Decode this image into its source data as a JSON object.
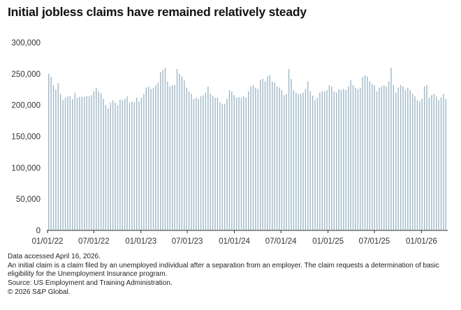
{
  "title": "Initial jobless claims have remained relatively steady",
  "notes": {
    "accessed": "Data accessed April 16, 2026.",
    "definition": "An initial claim is a claim filed by an unemployed individual after a separation from an employer. The claim requests a determination of basic eligibility for the Unemployment Insurance program.",
    "source": "Source: US Employment and Training Administration.",
    "copyright": "© 2026 S&P Global."
  },
  "colors": {
    "bar": "#9fb8c8",
    "axis": "#333333",
    "tick_text": "#333333"
  },
  "chart_data": {
    "type": "bar",
    "title": "Initial jobless claims have remained relatively steady",
    "xlabel": "",
    "ylabel": "",
    "ylim": [
      0,
      300000
    ],
    "yticks": [
      0,
      50000,
      100000,
      150000,
      200000,
      250000,
      300000
    ],
    "ytick_labels": [
      "0",
      "50,000",
      "100,000",
      "150,000",
      "200,000",
      "250,000",
      "300,000"
    ],
    "xtick_labels": [
      "01/01/22",
      "07/01/22",
      "01/01/23",
      "07/01/23",
      "01/01/24",
      "07/01/24",
      "01/01/25",
      "07/01/25",
      "01/01/26"
    ],
    "xtick_positions": [
      "2022-01-01",
      "2022-07-01",
      "2023-01-01",
      "2023-07-01",
      "2024-01-01",
      "2024-07-01",
      "2025-01-01",
      "2025-07-01",
      "2026-01-01"
    ],
    "x_start": "2022-01-01",
    "x_end": "2026-04-11",
    "grid": false,
    "legend": "none",
    "series": [
      {
        "values": [
          250000,
          245000,
          232000,
          225000,
          235000,
          218000,
          208000,
          212000,
          214000,
          215000,
          210000,
          220000,
          212000,
          213000,
          214000,
          213000,
          215000,
          214000,
          216000,
          222000,
          228000,
          222000,
          219000,
          210000,
          200000,
          195000,
          204000,
          208000,
          204000,
          200000,
          209000,
          208000,
          210000,
          214000,
          204000,
          206000,
          205000,
          212000,
          206000,
          212000,
          218000,
          228000,
          230000,
          226000,
          227000,
          232000,
          236000,
          253000,
          256000,
          260000,
          238000,
          230000,
          232000,
          232000,
          258000,
          250000,
          246000,
          240000,
          228000,
          222000,
          218000,
          210000,
          212000,
          210000,
          214000,
          216000,
          220000,
          230000,
          218000,
          215000,
          212000,
          212000,
          205000,
          202000,
          202000,
          210000,
          224000,
          222000,
          216000,
          212000,
          213000,
          212000,
          214000,
          212000,
          222000,
          230000,
          232000,
          228000,
          226000,
          240000,
          242000,
          238000,
          246000,
          248000,
          238000,
          236000,
          230000,
          228000,
          224000,
          216000,
          218000,
          258000,
          242000,
          224000,
          220000,
          218000,
          218000,
          220000,
          226000,
          238000,
          222000,
          215000,
          208000,
          212000,
          220000,
          222000,
          222000,
          224000,
          232000,
          230000,
          222000,
          220000,
          225000,
          224000,
          226000,
          224000,
          230000,
          240000,
          232000,
          228000,
          226000,
          228000,
          245000,
          248000,
          246000,
          238000,
          234000,
          232000,
          222000,
          228000,
          230000,
          232000,
          230000,
          238000,
          260000,
          232000,
          220000,
          228000,
          232000,
          230000,
          224000,
          228000,
          224000,
          218000,
          214000,
          208000,
          206000,
          210000,
          230000,
          232000,
          212000,
          216000,
          218000,
          214000,
          208000,
          212000,
          218000,
          210000
        ]
      }
    ]
  }
}
